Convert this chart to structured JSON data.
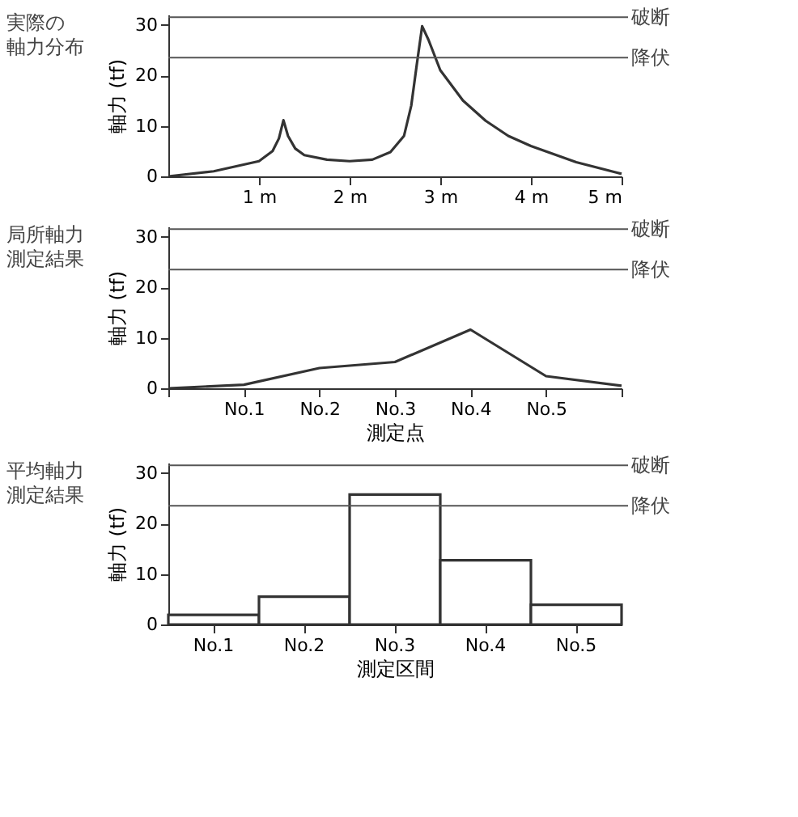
{
  "chart_data": [
    {
      "type": "line",
      "title": "実際の軸力分布",
      "ylabel": "軸力 (tf)",
      "color": "#333333",
      "grid": false,
      "x": [
        0,
        0.5,
        1,
        1.15,
        1.22,
        1.27,
        1.32,
        1.4,
        1.5,
        1.75,
        2,
        2.25,
        2.45,
        2.6,
        2.68,
        2.74,
        2.8,
        2.87,
        3,
        3.25,
        3.5,
        3.75,
        4,
        4.5,
        5
      ],
      "values": [
        0,
        1,
        3,
        5,
        7.5,
        11.1,
        8,
        5.5,
        4.2,
        3.3,
        3,
        3.3,
        4.8,
        8,
        14,
        22,
        29.7,
        27,
        21,
        15,
        11,
        8,
        6,
        2.8,
        0.5
      ],
      "xlim": [
        0,
        5
      ],
      "xticks": [
        {
          "value": 1,
          "label": "1 m"
        },
        {
          "value": 2,
          "label": "2 m"
        },
        {
          "value": 3,
          "label": "3 m"
        },
        {
          "value": 4,
          "label": "4 m"
        },
        {
          "value": 5,
          "label": "5 m"
        }
      ],
      "ylim": [
        0,
        32
      ],
      "yticks": [
        0,
        10,
        20,
        30
      ],
      "ref_lines": [
        {
          "axis": "y",
          "value": 31.5,
          "label": "破断"
        },
        {
          "axis": "y",
          "value": 23.5,
          "label": "降伏"
        }
      ]
    },
    {
      "type": "line",
      "title": "局所軸力測定結果",
      "ylabel": "軸力 (tf)",
      "xlabel": "測定点",
      "color": "#333333",
      "grid": false,
      "categories": [
        null,
        "No.1",
        "No.2",
        "No.3",
        "No.4",
        "No.5",
        null
      ],
      "values": [
        0,
        0.7,
        4,
        5.2,
        11.6,
        2.4,
        0.5
      ],
      "ylim": [
        0,
        32
      ],
      "yticks": [
        0,
        10,
        20,
        30
      ],
      "ref_lines": [
        {
          "axis": "y",
          "value": 31.5,
          "label": "破断"
        },
        {
          "axis": "y",
          "value": 23.5,
          "label": "降伏"
        }
      ]
    },
    {
      "type": "bar",
      "title": "平均軸力測定結果",
      "ylabel": "軸力 (tf)",
      "xlabel": "測定区間",
      "color": "#333333",
      "grid": false,
      "categories": [
        "No.1",
        "No.2",
        "No.3",
        "No.4",
        "No.5"
      ],
      "values": [
        1.9,
        5.5,
        25.7,
        12.7,
        3.9
      ],
      "ylim": [
        0,
        32
      ],
      "yticks": [
        0,
        10,
        20,
        30
      ],
      "ref_lines": [
        {
          "axis": "y",
          "value": 31.5,
          "label": "破断"
        },
        {
          "axis": "y",
          "value": 23.5,
          "label": "降伏"
        }
      ]
    }
  ]
}
